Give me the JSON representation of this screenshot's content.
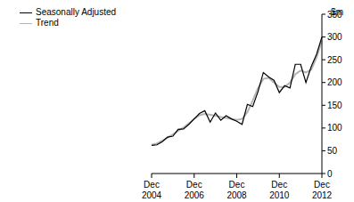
{
  "chart_data": {
    "type": "line",
    "y_label": "$m",
    "categories": [
      "Dec 2004",
      null,
      null,
      null,
      null,
      null,
      null,
      null,
      "Dec 2006",
      null,
      null,
      null,
      null,
      null,
      null,
      null,
      "Dec 2008",
      null,
      null,
      null,
      null,
      null,
      null,
      null,
      "Dec 2010",
      null,
      null,
      null,
      null,
      null,
      null,
      null,
      "Dec 2012"
    ],
    "series": [
      {
        "name": "Seasonally Adjusted",
        "color": "#000000",
        "values": [
          62,
          63,
          70,
          80,
          82,
          97,
          98,
          108,
          120,
          132,
          138,
          113,
          133,
          117,
          127,
          120,
          115,
          108,
          152,
          147,
          180,
          222,
          212,
          205,
          178,
          193,
          188,
          240,
          240,
          200,
          235,
          262,
          300
        ]
      },
      {
        "name": "Trend",
        "color": "#b4b4b4",
        "values": [
          63,
          66,
          72,
          79,
          86,
          94,
          101,
          110,
          120,
          128,
          131,
          129,
          127,
          124,
          122,
          120,
          118,
          120,
          135,
          160,
          188,
          208,
          210,
          200,
          190,
          190,
          200,
          218,
          226,
          222,
          228,
          255,
          292
        ]
      }
    ],
    "ylim": [
      0,
      350
    ],
    "yticks": [
      0,
      50,
      100,
      150,
      200,
      250,
      300,
      350
    ],
    "legend": "upper left",
    "grid": false
  }
}
